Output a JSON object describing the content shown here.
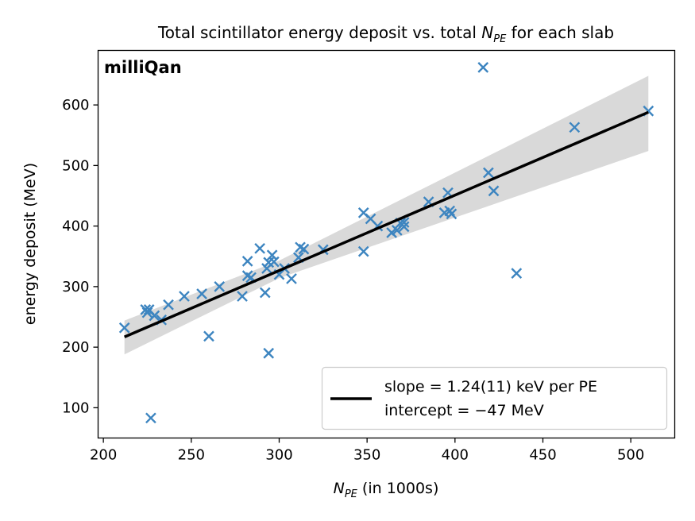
{
  "chart_data": {
    "type": "scatter",
    "title_prefix": "Total scintillator energy deposit vs. total ",
    "title_sym": "N",
    "title_sub": "PE",
    "title_suffix": " for each slab",
    "xlabel_sym": "N",
    "xlabel_sub": "PE",
    "xlabel_suffix": " (in 1000s)",
    "ylabel": "energy deposit (MeV)",
    "watermark": "milliQan",
    "xlim": [
      197,
      525
    ],
    "ylim": [
      50,
      690
    ],
    "xticks": [
      200,
      250,
      300,
      350,
      400,
      450,
      500
    ],
    "yticks": [
      100,
      200,
      300,
      400,
      500,
      600
    ],
    "grid": false,
    "legend_position": "lower-right",
    "colors": {
      "points": "#3d85c0",
      "fit": "#000000",
      "band": "#d9d9d9"
    },
    "series": [
      {
        "marker": "x",
        "points": [
          [
            212,
            232
          ],
          [
            224,
            262
          ],
          [
            225,
            257
          ],
          [
            226,
            262
          ],
          [
            227,
            83
          ],
          [
            229,
            252
          ],
          [
            233,
            245
          ],
          [
            237,
            270
          ],
          [
            246,
            284
          ],
          [
            256,
            288
          ],
          [
            260,
            218
          ],
          [
            266,
            300
          ],
          [
            279,
            284
          ],
          [
            282,
            342
          ],
          [
            282,
            318
          ],
          [
            284,
            315
          ],
          [
            289,
            363
          ],
          [
            292,
            290
          ],
          [
            293,
            330
          ],
          [
            294,
            190
          ],
          [
            294,
            340
          ],
          [
            296,
            352
          ],
          [
            297,
            341
          ],
          [
            300,
            320
          ],
          [
            303,
            330
          ],
          [
            307,
            313
          ],
          [
            311,
            348
          ],
          [
            312,
            365
          ],
          [
            314,
            362
          ],
          [
            325,
            361
          ],
          [
            348,
            358
          ],
          [
            348,
            422
          ],
          [
            352,
            412
          ],
          [
            356,
            400
          ],
          [
            364,
            389
          ],
          [
            367,
            393
          ],
          [
            369,
            405
          ],
          [
            371,
            399
          ],
          [
            371,
            406
          ],
          [
            385,
            440
          ],
          [
            394,
            422
          ],
          [
            396,
            455
          ],
          [
            397,
            425
          ],
          [
            398,
            420
          ],
          [
            416,
            662
          ],
          [
            419,
            488
          ],
          [
            422,
            458
          ],
          [
            435,
            322
          ],
          [
            468,
            563
          ],
          [
            510,
            590
          ]
        ]
      }
    ],
    "fit": {
      "slope_label": "slope = 1.24(11) keV per PE",
      "intercept_label": "intercept = −47 MeV",
      "x_range": [
        212,
        510
      ],
      "slope": 1.245,
      "intercept": -47,
      "band": [
        [
          212,
          188,
          244
        ],
        [
          300,
          314,
          343
        ],
        [
          510,
          524,
          648
        ]
      ]
    }
  }
}
